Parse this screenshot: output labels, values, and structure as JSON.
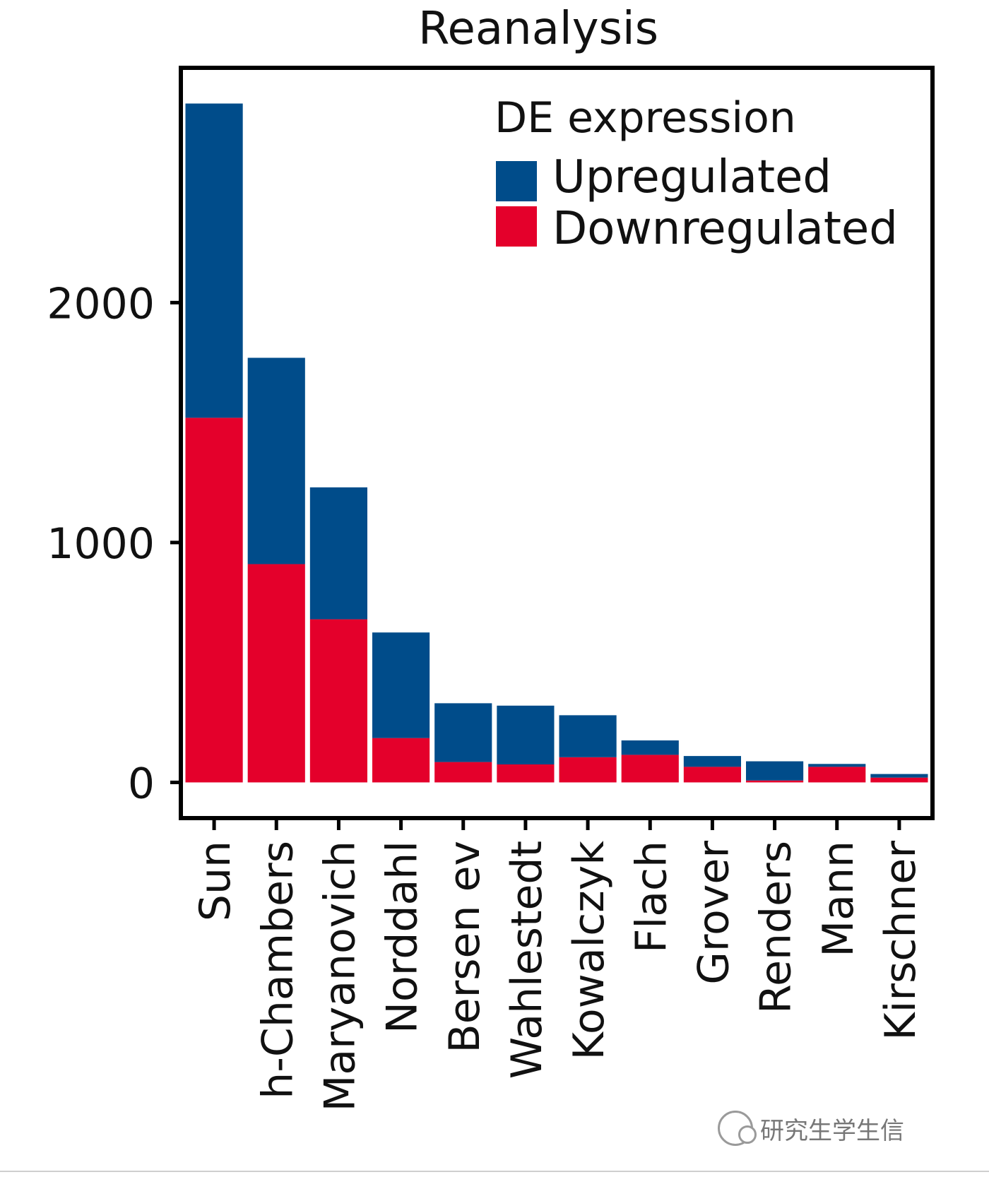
{
  "chart_data": {
    "type": "bar",
    "stacked": true,
    "title": "Reanalysis",
    "ylim": [
      -140,
      2970
    ],
    "yticks": [
      0,
      1000,
      2000
    ],
    "categories": [
      "Sun",
      "h-Chambers",
      "Maryanovich",
      "Norddahl",
      "Bersen ev",
      "Wahlestedt",
      "Kowalczyk",
      "Flach",
      "Grover",
      "Renders",
      "Mann",
      "Kirschner"
    ],
    "series": [
      {
        "name": "Downregulated",
        "color": "#E4002B",
        "values": [
          1520,
          910,
          680,
          185,
          85,
          75,
          105,
          115,
          65,
          8,
          65,
          20
        ]
      },
      {
        "name": "Upregulated",
        "color": "#004C8A",
        "values": [
          1310,
          860,
          550,
          440,
          245,
          245,
          175,
          60,
          45,
          80,
          12,
          15
        ]
      }
    ],
    "legend": {
      "title": "DE expression",
      "position": "top-right",
      "entries": [
        "Upregulated",
        "Downregulated"
      ]
    },
    "grid": false
  },
  "watermark": "研究生学生信"
}
